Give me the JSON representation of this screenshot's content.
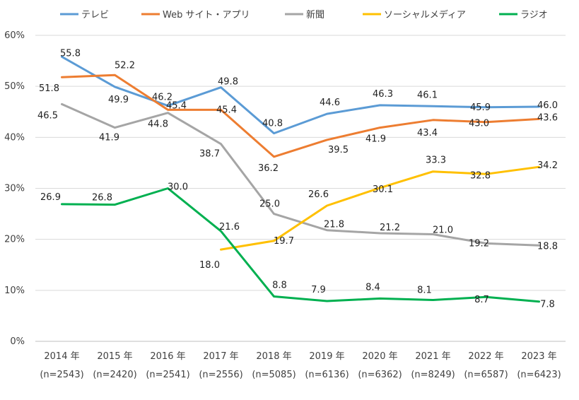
{
  "chart_data": {
    "type": "line",
    "title": "",
    "xlabel": "",
    "ylabel": "",
    "ylim": [
      0,
      60
    ],
    "yticks": [
      "0%",
      "10%",
      "20%",
      "30%",
      "40%",
      "50%",
      "60%"
    ],
    "categories": [
      "2014 年",
      "2015 年",
      "2016 年",
      "2017 年",
      "2018 年",
      "2019 年",
      "2020 年",
      "2021 年",
      "2022 年",
      "2023 年"
    ],
    "sample_sizes": [
      "(n=2543)",
      "(n=2420)",
      "(n=2541)",
      "(n=2556)",
      "(n=5085)",
      "(n=6136)",
      "(n=6362)",
      "(n=8249)",
      "(n=6587)",
      "(n=6423)"
    ],
    "legend_position": "top",
    "grid": true,
    "series": [
      {
        "name": "テレビ",
        "color": "#5B9BD5",
        "values": [
          55.8,
          49.9,
          46.2,
          49.8,
          40.8,
          44.6,
          46.3,
          46.1,
          45.9,
          46.0
        ]
      },
      {
        "name": "Web サイト・アプリ",
        "color": "#ED7D31",
        "values": [
          51.8,
          52.2,
          45.4,
          45.4,
          36.2,
          39.5,
          41.9,
          43.4,
          43.0,
          43.6
        ]
      },
      {
        "name": "新聞",
        "color": "#A5A5A5",
        "values": [
          46.5,
          41.9,
          44.8,
          38.7,
          25.0,
          21.8,
          21.2,
          21.0,
          19.2,
          18.8
        ]
      },
      {
        "name": "ソーシャルメディア",
        "color": "#FFC000",
        "values": [
          null,
          null,
          null,
          18.0,
          19.7,
          26.6,
          30.1,
          33.3,
          32.8,
          34.2
        ]
      },
      {
        "name": "ラジオ",
        "color": "#00B050",
        "values": [
          26.9,
          26.8,
          30.0,
          21.6,
          8.8,
          7.9,
          8.4,
          8.1,
          8.7,
          7.8
        ]
      }
    ]
  }
}
